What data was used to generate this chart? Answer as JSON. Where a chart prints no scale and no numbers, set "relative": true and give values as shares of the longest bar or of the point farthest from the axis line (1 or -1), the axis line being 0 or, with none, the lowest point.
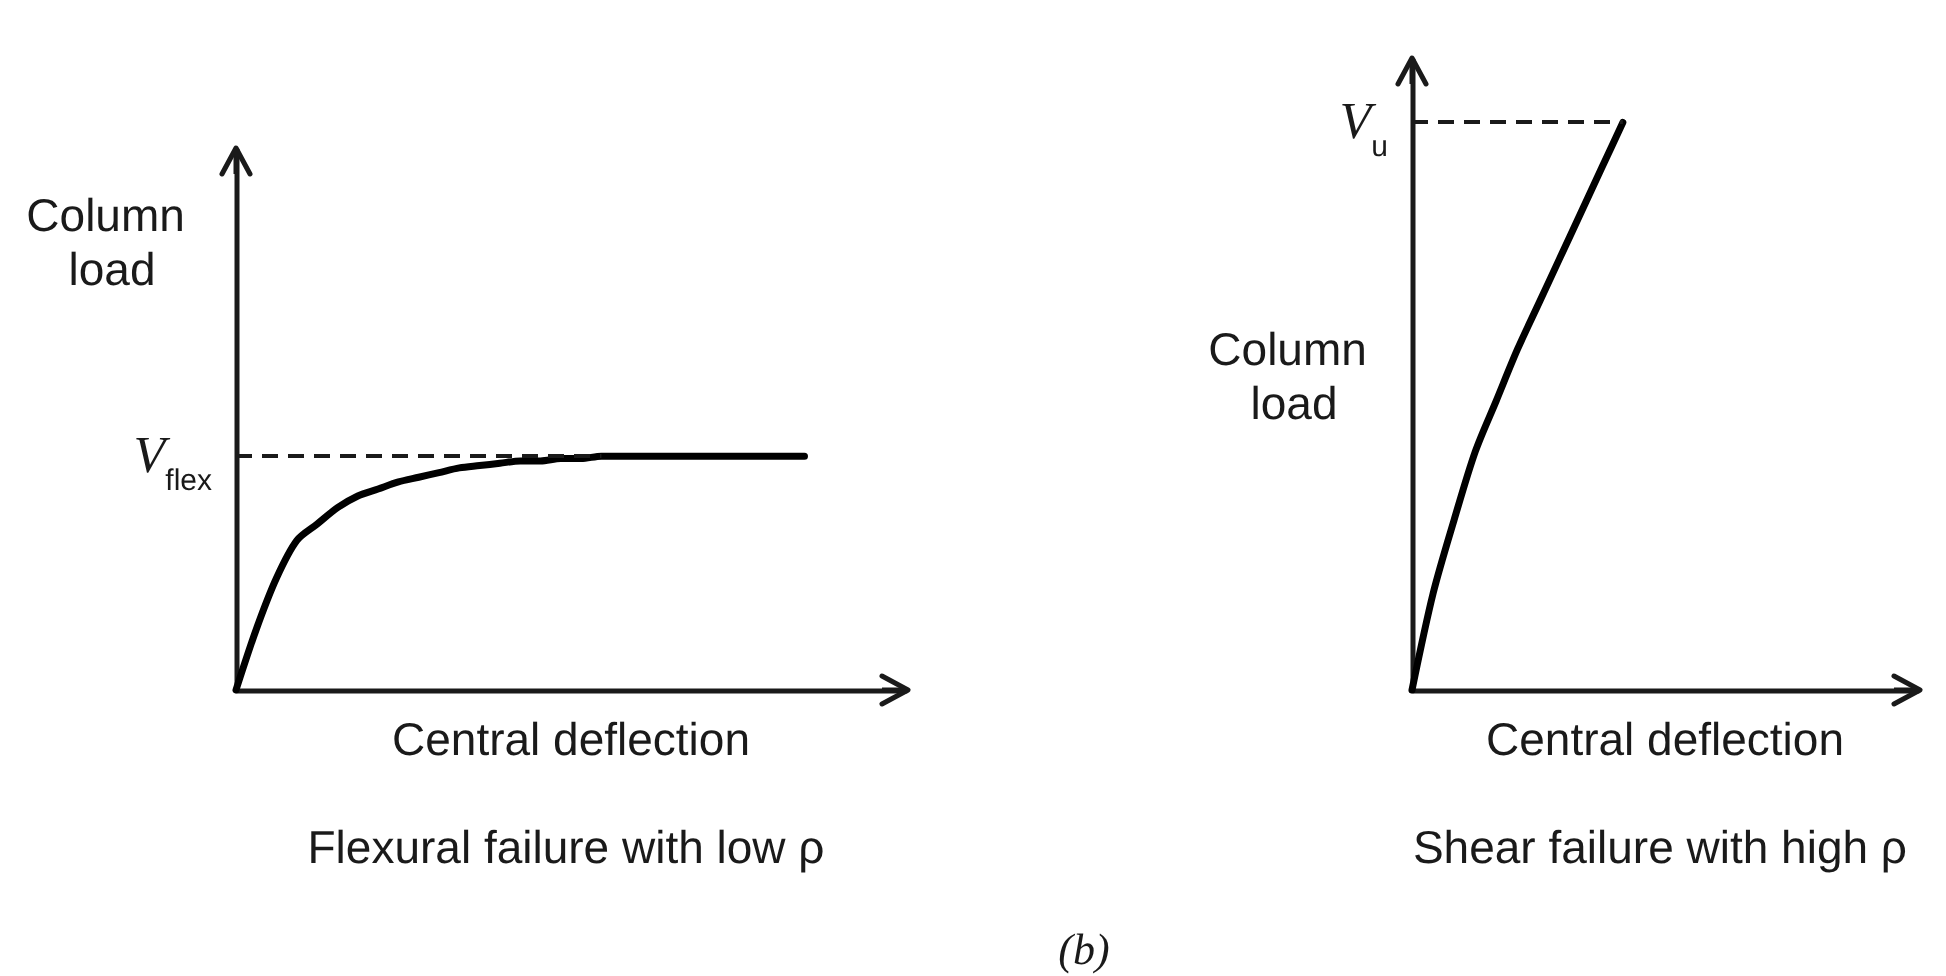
{
  "chart_data": [
    {
      "type": "line",
      "relative": true,
      "title": "Flexural failure with low ρ",
      "xlabel": "Central deflection",
      "ylabel": "Column load",
      "categories": [
        null,
        null,
        null,
        null,
        null,
        null,
        null,
        null,
        null,
        null,
        null,
        null,
        null,
        null,
        null,
        null,
        null,
        null,
        null,
        null,
        null,
        null,
        null,
        null,
        null,
        null,
        null,
        null,
        null,
        null,
        null,
        null,
        null,
        null
      ],
      "values": [
        0,
        0.26,
        0.48,
        0.64,
        0.71,
        0.78,
        0.83,
        0.86,
        0.89,
        0.91,
        0.93,
        0.95,
        0.96,
        0.97,
        0.98,
        0.98,
        0.99,
        0.99,
        1,
        1,
        1,
        1,
        1,
        1,
        1,
        1,
        1,
        1,
        1,
        null,
        null,
        null,
        null,
        null
      ],
      "color": "#000000",
      "ref_lines": [
        {
          "axis": "y",
          "value": 1,
          "label": "V$_{flex}$",
          "line_style": "dashed"
        }
      ],
      "annotations": [
        "(b)"
      ]
    },
    {
      "type": "line",
      "relative": true,
      "title": "Shear failure with high ρ",
      "xlabel": "Central deflection",
      "ylabel": "Column load",
      "categories": [
        null,
        null,
        null,
        null,
        null,
        null,
        null,
        null,
        null,
        null,
        null,
        null,
        null,
        null,
        null,
        null,
        null,
        null,
        null,
        null,
        null,
        null,
        null,
        null,
        null
      ],
      "values": [
        0,
        0.17,
        0.3,
        0.42,
        0.51,
        0.6,
        0.68,
        0.76,
        0.84,
        0.92,
        1,
        null,
        null,
        null,
        null,
        null,
        null,
        null,
        null,
        null,
        null,
        null,
        null,
        null,
        null
      ],
      "color": "#000000",
      "ref_lines": [
        {
          "axis": "y",
          "value": 1,
          "label": "V$_{u}$",
          "line_style": "dashed"
        }
      ]
    }
  ]
}
